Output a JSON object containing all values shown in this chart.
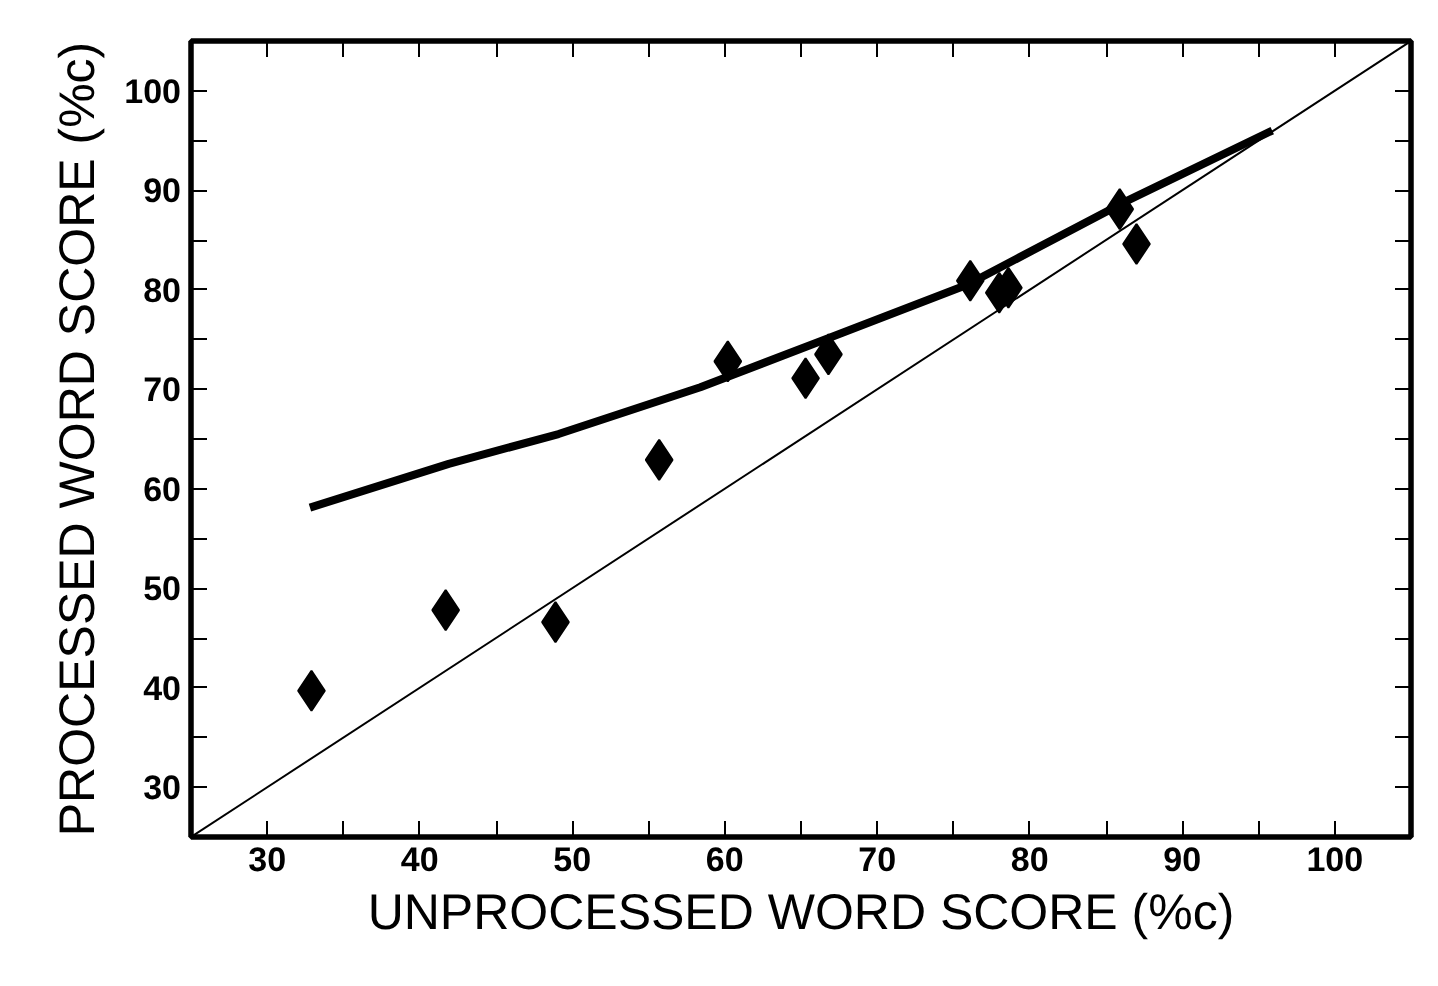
{
  "chart_data": {
    "type": "scatter",
    "xlabel": "UNPROCESSED WORD SCORE (%c)",
    "ylabel": "PROCESSED WORD SCORE (%c)",
    "xlim": [
      25,
      105
    ],
    "ylim": [
      25,
      105
    ],
    "xticks": [
      30,
      {
        "value": 35,
        "label": null
      },
      40,
      {
        "value": 45,
        "label": null
      },
      50,
      {
        "value": 55,
        "label": null
      },
      60,
      {
        "value": 65,
        "label": null
      },
      70,
      {
        "value": 75,
        "label": null
      },
      80,
      {
        "value": 85,
        "label": null
      },
      90,
      {
        "value": 95,
        "label": null
      },
      100
    ],
    "yticks": [
      30,
      {
        "value": 35,
        "label": null
      },
      40,
      {
        "value": 45,
        "label": null
      },
      50,
      {
        "value": 55,
        "label": null
      },
      60,
      {
        "value": 65,
        "label": null
      },
      70,
      {
        "value": 75,
        "label": null
      },
      80,
      {
        "value": 85,
        "label": null
      },
      90,
      {
        "value": 95,
        "label": null
      },
      100
    ],
    "grid": false,
    "series": [
      {
        "marker": "diamond",
        "color": "#000000",
        "x": [
          32.9,
          41.7,
          48.9,
          55.7,
          60.2,
          65.3,
          66.8,
          76.1,
          78.0,
          78.6,
          85.9,
          87.0
        ],
        "values": [
          39.7,
          47.8,
          46.6,
          62.9,
          72.8,
          71.1,
          73.5,
          80.9,
          79.7,
          80.2,
          88.1,
          84.6
        ]
      },
      {
        "type": "line",
        "marker": "none",
        "color": "#000000",
        "x": [
          32.8,
          41.9,
          49.1,
          58.4,
          66.4,
          75.9,
          86.2,
          95.9
        ],
        "values": [
          58.1,
          62.5,
          65.5,
          70.2,
          74.9,
          80.5,
          88.8,
          96.0
        ]
      },
      {
        "type": "line",
        "marker": "none",
        "color": "#000000",
        "x": [
          25,
          105
        ],
        "values": [
          25,
          105
        ]
      }
    ]
  }
}
